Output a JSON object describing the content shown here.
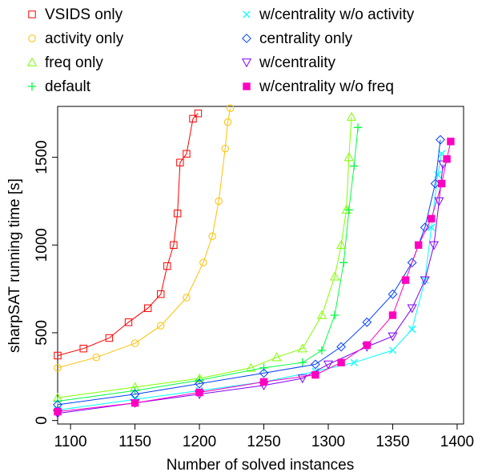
{
  "chart_data": {
    "type": "scatter",
    "title": "",
    "xlabel": "Number of solved instances",
    "ylabel": "sharpSAT running time [s]",
    "xlim": [
      1090,
      1405
    ],
    "ylim": [
      -20,
      1790
    ],
    "xticks": [
      1100,
      1150,
      1200,
      1250,
      1300,
      1350,
      1400
    ],
    "yticks": [
      0,
      500,
      1000,
      1500
    ],
    "grid": false,
    "legend_position": "top",
    "series": [
      {
        "name": "VSIDS only",
        "color": "#ff0000",
        "marker": "square-open",
        "points": [
          [
            1090,
            370
          ],
          [
            1110,
            410
          ],
          [
            1130,
            470
          ],
          [
            1145,
            560
          ],
          [
            1160,
            640
          ],
          [
            1170,
            720
          ],
          [
            1175,
            880
          ],
          [
            1180,
            1000
          ],
          [
            1183,
            1180
          ],
          [
            1185,
            1470
          ],
          [
            1190,
            1520
          ],
          [
            1195,
            1720
          ],
          [
            1199,
            1750
          ]
        ]
      },
      {
        "name": "activity only",
        "color": "#ffc000",
        "marker": "circle-open",
        "points": [
          [
            1090,
            300
          ],
          [
            1120,
            360
          ],
          [
            1150,
            440
          ],
          [
            1170,
            540
          ],
          [
            1190,
            700
          ],
          [
            1203,
            900
          ],
          [
            1210,
            1050
          ],
          [
            1215,
            1250
          ],
          [
            1220,
            1550
          ],
          [
            1222,
            1700
          ],
          [
            1224,
            1780
          ]
        ]
      },
      {
        "name": "freq only",
        "color": "#80ff00",
        "marker": "triangle-up-open",
        "points": [
          [
            1090,
            130
          ],
          [
            1150,
            190
          ],
          [
            1200,
            240
          ],
          [
            1240,
            300
          ],
          [
            1260,
            360
          ],
          [
            1280,
            410
          ],
          [
            1295,
            600
          ],
          [
            1305,
            820
          ],
          [
            1310,
            1000
          ],
          [
            1314,
            1200
          ],
          [
            1316,
            1500
          ],
          [
            1318,
            1730
          ]
        ]
      },
      {
        "name": "default",
        "color": "#00ff40",
        "marker": "plus",
        "points": [
          [
            1090,
            110
          ],
          [
            1150,
            170
          ],
          [
            1200,
            230
          ],
          [
            1250,
            300
          ],
          [
            1280,
            330
          ],
          [
            1295,
            400
          ],
          [
            1305,
            600
          ],
          [
            1312,
            900
          ],
          [
            1316,
            1200
          ],
          [
            1320,
            1450
          ],
          [
            1323,
            1670
          ]
        ]
      },
      {
        "name": "w/centrality w/o activity",
        "color": "#00ffff",
        "marker": "x",
        "points": [
          [
            1090,
            60
          ],
          [
            1150,
            120
          ],
          [
            1200,
            170
          ],
          [
            1250,
            220
          ],
          [
            1290,
            280
          ],
          [
            1320,
            330
          ],
          [
            1350,
            400
          ],
          [
            1365,
            520
          ],
          [
            1375,
            800
          ],
          [
            1380,
            1100
          ],
          [
            1385,
            1400
          ],
          [
            1388,
            1520
          ]
        ]
      },
      {
        "name": "centrality only",
        "color": "#0040ff",
        "marker": "diamond-open",
        "points": [
          [
            1090,
            90
          ],
          [
            1150,
            150
          ],
          [
            1200,
            210
          ],
          [
            1250,
            270
          ],
          [
            1290,
            320
          ],
          [
            1310,
            420
          ],
          [
            1330,
            560
          ],
          [
            1350,
            720
          ],
          [
            1365,
            900
          ],
          [
            1375,
            1100
          ],
          [
            1383,
            1350
          ],
          [
            1387,
            1600
          ]
        ]
      },
      {
        "name": "w/centrality",
        "color": "#8000ff",
        "marker": "triangle-down-open",
        "points": [
          [
            1090,
            40
          ],
          [
            1150,
            100
          ],
          [
            1200,
            150
          ],
          [
            1250,
            200
          ],
          [
            1280,
            240
          ],
          [
            1300,
            320
          ],
          [
            1330,
            420
          ],
          [
            1350,
            480
          ],
          [
            1365,
            640
          ],
          [
            1375,
            800
          ],
          [
            1382,
            1000
          ],
          [
            1386,
            1250
          ],
          [
            1389,
            1460
          ]
        ]
      },
      {
        "name": "w/centrality w/o freq",
        "color": "#ff00c0",
        "marker": "square-filled",
        "points": [
          [
            1090,
            50
          ],
          [
            1150,
            100
          ],
          [
            1200,
            160
          ],
          [
            1250,
            220
          ],
          [
            1290,
            260
          ],
          [
            1310,
            330
          ],
          [
            1330,
            430
          ],
          [
            1350,
            600
          ],
          [
            1360,
            800
          ],
          [
            1370,
            1000
          ],
          [
            1380,
            1150
          ],
          [
            1388,
            1350
          ],
          [
            1392,
            1490
          ],
          [
            1395,
            1590
          ]
        ]
      }
    ]
  }
}
